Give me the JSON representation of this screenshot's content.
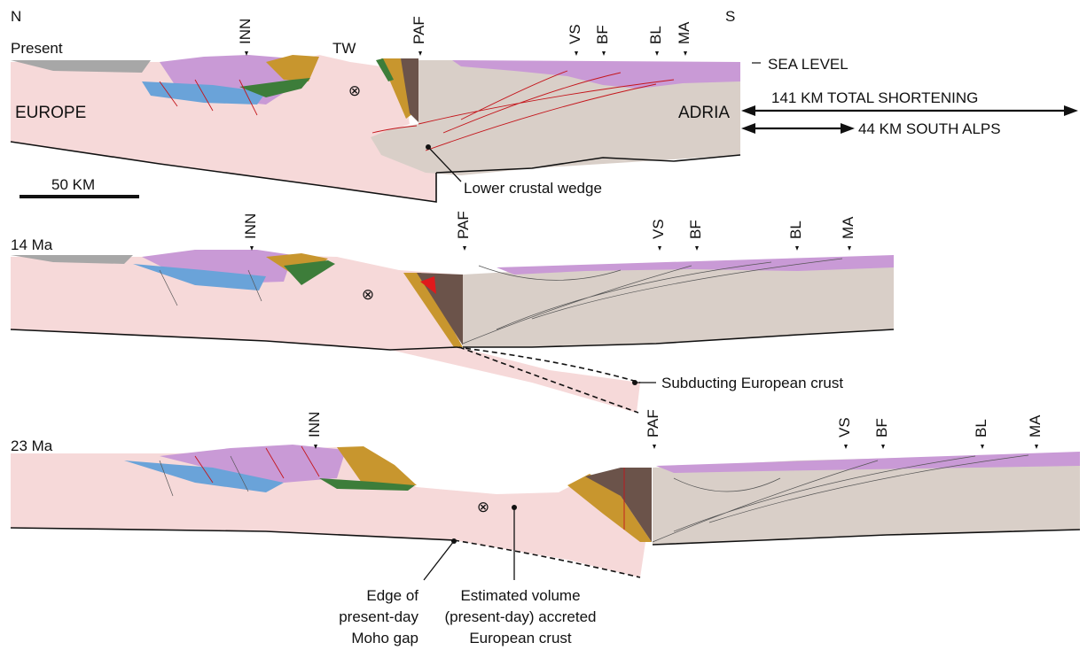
{
  "compass": {
    "north": "N",
    "south": "S"
  },
  "faults": {
    "inn": "INN",
    "paf": "PAF",
    "vs": "VS",
    "bf": "BF",
    "bl": "BL",
    "ma": "MA"
  },
  "panels": {
    "present": {
      "label": "Present",
      "tw": "TW",
      "europe": "EUROPE",
      "adria": "ADRIA",
      "sea_level": "SEA LEVEL",
      "lower_wedge": "Lower crustal wedge"
    },
    "ma14": {
      "label": "14 Ma",
      "subducting": "Subducting European crust"
    },
    "ma23": {
      "label": "23 Ma",
      "moho_gap": [
        "Edge of",
        "present-day",
        "Moho gap"
      ],
      "accreted": [
        "Estimated volume",
        "(present-day) accreted",
        "European crust"
      ]
    }
  },
  "shortening": {
    "total": "141 KM TOTAL SHORTENING",
    "south_alps": "44 KM SOUTH ALPS"
  },
  "scale_bar": {
    "label": "50 KM"
  },
  "colors": {
    "europe_crust": "#f6d9d9",
    "adria_crust": "#d9cfc8",
    "purple": "#c99ad6",
    "ochre": "#c8962e",
    "brown": "#6b534a",
    "blue": "#6aa3d9",
    "green": "#3d7d3a",
    "gray": "#a7a7a7",
    "red": "#e0191c",
    "fault": "#c4161c"
  }
}
